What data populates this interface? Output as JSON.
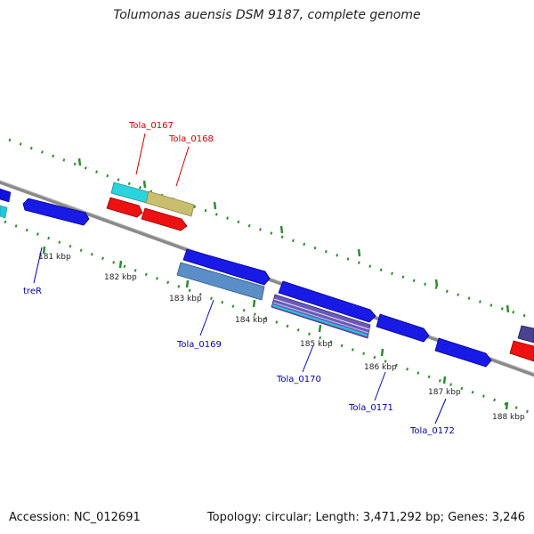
{
  "title": "Tolumonas auensis DSM 9187, complete genome",
  "footer": {
    "accession": "Accession: NC_012691",
    "summary": "Topology: circular; Length: 3,471,292 bp; Genes: 3,246"
  },
  "colors": {
    "backbone": "#808080",
    "tick": "#2e8b2e",
    "label_top_strand": "#cc0000",
    "label_bottom_strand": "#0000aa",
    "kbp_text": "#222222"
  },
  "kbp_labels": [
    "181 kbp",
    "182 kbp",
    "183 kbp",
    "184 kbp",
    "185 kbp",
    "186 kbp",
    "187 kbp",
    "188 kbp"
  ],
  "gene_labels": {
    "tola_0167": "Tola_0167",
    "tola_0168": "Tola_0168",
    "trer": "treR",
    "tola_0169": "Tola_0169",
    "tola_0170": "Tola_0170",
    "tola_0171": "Tola_0171",
    "tola_0172": "Tola_0172"
  }
}
